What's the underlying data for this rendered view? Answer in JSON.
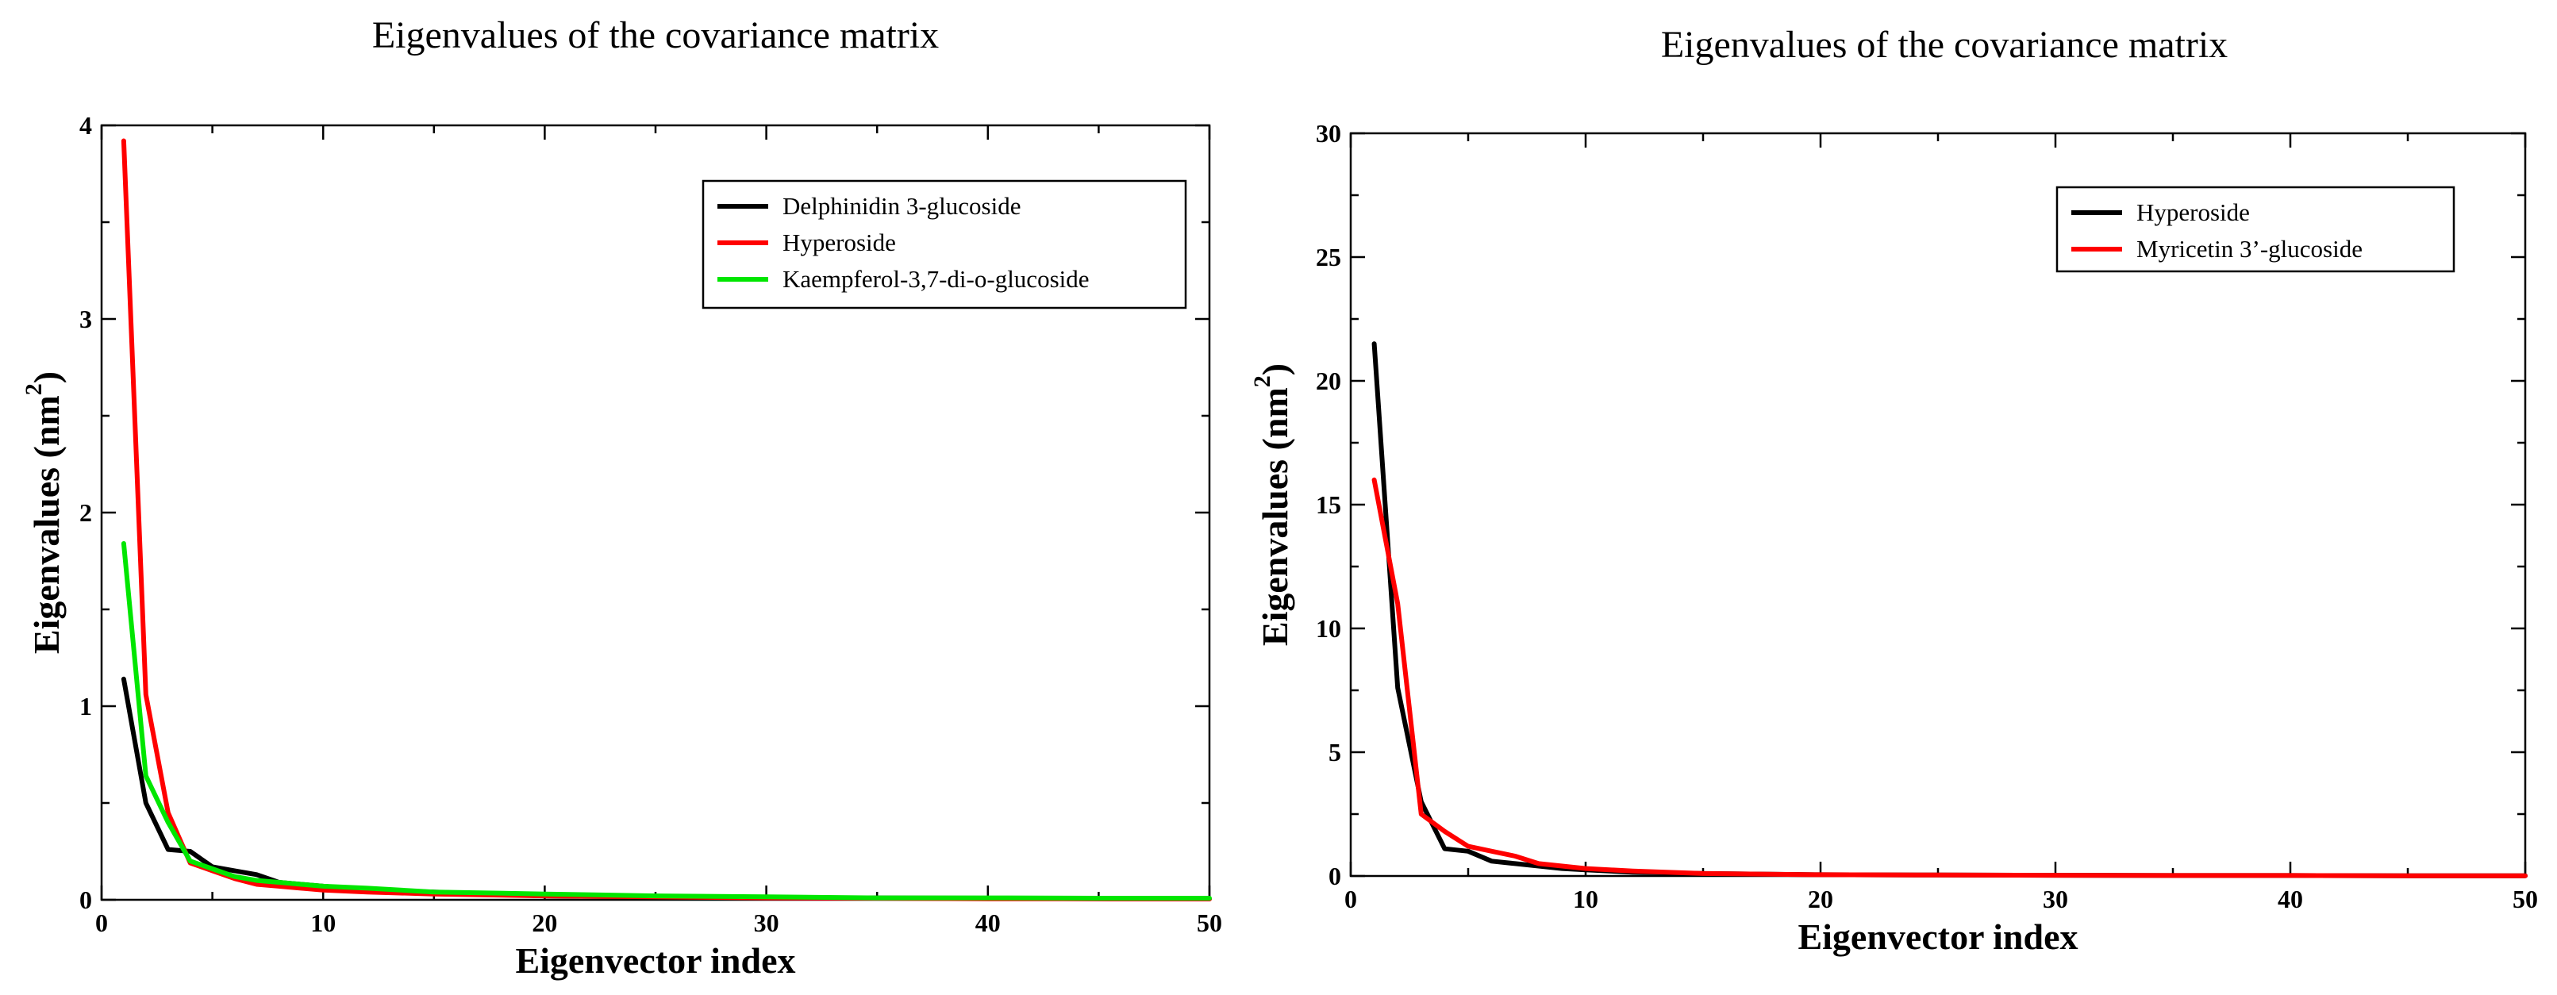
{
  "chart_data": [
    {
      "type": "line",
      "title": "Eigenvalues of the covariance matrix",
      "xlabel": "Eigenvector index",
      "ylabel": "Eigenvalues (nm",
      "ylabel_sup": "2",
      "ylabel_close": ")",
      "xlim": [
        0,
        50
      ],
      "ylim": [
        0,
        4
      ],
      "xticks": [
        0,
        10,
        20,
        30,
        40,
        50
      ],
      "yticks": [
        0,
        1,
        2,
        3,
        4
      ],
      "legend_position": "top-right",
      "series": [
        {
          "name": "Delphinidin 3-glucoside",
          "color": "#000000",
          "x": [
            1,
            2,
            3,
            4,
            5,
            6,
            7,
            8,
            9,
            10,
            12,
            15,
            20,
            25,
            30,
            35,
            40,
            45,
            50
          ],
          "values": [
            1.14,
            0.5,
            0.26,
            0.25,
            0.17,
            0.15,
            0.13,
            0.09,
            0.08,
            0.07,
            0.05,
            0.04,
            0.02,
            0.015,
            0.01,
            0.01,
            0.008,
            0.005,
            0.005
          ]
        },
        {
          "name": "Hyperoside",
          "color": "#ff0000",
          "x": [
            1,
            2,
            3,
            4,
            5,
            6,
            7,
            8,
            9,
            10,
            12,
            15,
            20,
            25,
            30,
            35,
            40,
            45,
            50
          ],
          "values": [
            3.92,
            1.06,
            0.45,
            0.19,
            0.15,
            0.11,
            0.08,
            0.07,
            0.06,
            0.05,
            0.04,
            0.03,
            0.02,
            0.015,
            0.01,
            0.008,
            0.005,
            0.005,
            0.004
          ]
        },
        {
          "name": "Kaempferol-3,7-di-o-glucoside",
          "color": "#00e600",
          "x": [
            1,
            2,
            3,
            4,
            5,
            6,
            7,
            8,
            9,
            10,
            12,
            15,
            20,
            25,
            30,
            35,
            40,
            45,
            50
          ],
          "values": [
            1.84,
            0.64,
            0.4,
            0.2,
            0.16,
            0.12,
            0.1,
            0.09,
            0.08,
            0.07,
            0.06,
            0.04,
            0.03,
            0.02,
            0.015,
            0.01,
            0.01,
            0.008,
            0.008
          ]
        }
      ]
    },
    {
      "type": "line",
      "title": "Eigenvalues of the covariance matrix",
      "xlabel": "Eigenvector index",
      "ylabel": "Eigenvalues (nm",
      "ylabel_sup": "2",
      "ylabel_close": ")",
      "xlim": [
        0,
        50
      ],
      "ylim": [
        0,
        30
      ],
      "xticks": [
        0,
        10,
        20,
        30,
        40,
        50
      ],
      "yticks": [
        0,
        5,
        10,
        15,
        20,
        25,
        30
      ],
      "legend_position": "top-right",
      "series": [
        {
          "name": "Hyperoside",
          "color": "#000000",
          "x": [
            1,
            2,
            3,
            4,
            5,
            6,
            7,
            8,
            9,
            10,
            12,
            15,
            20,
            25,
            30,
            35,
            40,
            45,
            50
          ],
          "values": [
            21.5,
            7.6,
            3.0,
            1.1,
            1.0,
            0.6,
            0.5,
            0.4,
            0.3,
            0.25,
            0.15,
            0.1,
            0.05,
            0.04,
            0.03,
            0.02,
            0.02,
            0.01,
            0.01
          ]
        },
        {
          "name": "Myricetin 3’-glucoside",
          "color": "#ff0000",
          "x": [
            1,
            2,
            3,
            4,
            5,
            6,
            7,
            8,
            9,
            10,
            12,
            15,
            20,
            25,
            30,
            35,
            40,
            45,
            50
          ],
          "values": [
            16.0,
            11.0,
            2.5,
            1.8,
            1.2,
            1.0,
            0.8,
            0.5,
            0.4,
            0.3,
            0.2,
            0.1,
            0.05,
            0.04,
            0.03,
            0.02,
            0.02,
            0.01,
            0.01
          ]
        }
      ]
    }
  ]
}
